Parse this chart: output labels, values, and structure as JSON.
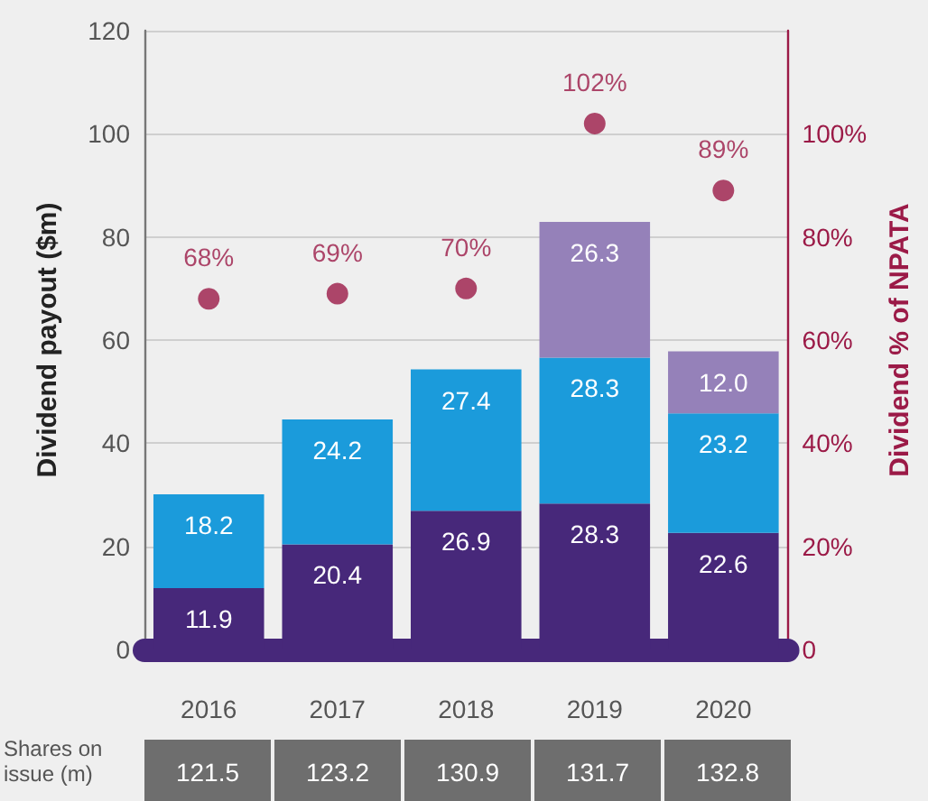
{
  "chart_data": {
    "type": "bar",
    "stacked": true,
    "data_labels": true,
    "grid": "y",
    "categories": [
      "2016",
      "2017",
      "2018",
      "2019",
      "2020"
    ],
    "ylabel": "Dividend payout ($m)",
    "y2label": "Dividend % of NPATA",
    "ylim": [
      0,
      120
    ],
    "yticks": [
      0,
      20,
      40,
      60,
      80,
      100,
      120
    ],
    "y2lim": [
      0,
      120
    ],
    "y2ticks": [
      {
        "value": 0,
        "label": "0"
      },
      {
        "value": 20,
        "label": "20%"
      },
      {
        "value": 40,
        "label": "40%"
      },
      {
        "value": 60,
        "label": "60%"
      },
      {
        "value": 80,
        "label": "80%"
      },
      {
        "value": 100,
        "label": "100%"
      }
    ],
    "series": [
      {
        "color": "#47287a",
        "values": [
          11.9,
          20.4,
          26.9,
          28.3,
          22.6
        ]
      },
      {
        "color": "#1b9bdb",
        "values": [
          18.2,
          24.2,
          27.4,
          28.3,
          23.2
        ]
      },
      {
        "color": "#9581b9",
        "values": [
          null,
          null,
          null,
          26.3,
          12.0
        ],
        "value_labels": [
          null,
          null,
          null,
          "26.3",
          "12.0"
        ]
      },
      {
        "type": "scatter",
        "marker": "circle",
        "color": "#9b1a47",
        "values": [
          68,
          69,
          70,
          102,
          89
        ],
        "value_labels": [
          "68%",
          "69%",
          "70%",
          "102%",
          "89%"
        ]
      }
    ],
    "annotations": [
      "Shares on issue (m)",
      "121.5",
      "123.2",
      "130.9",
      "131.7",
      "132.8"
    ]
  }
}
